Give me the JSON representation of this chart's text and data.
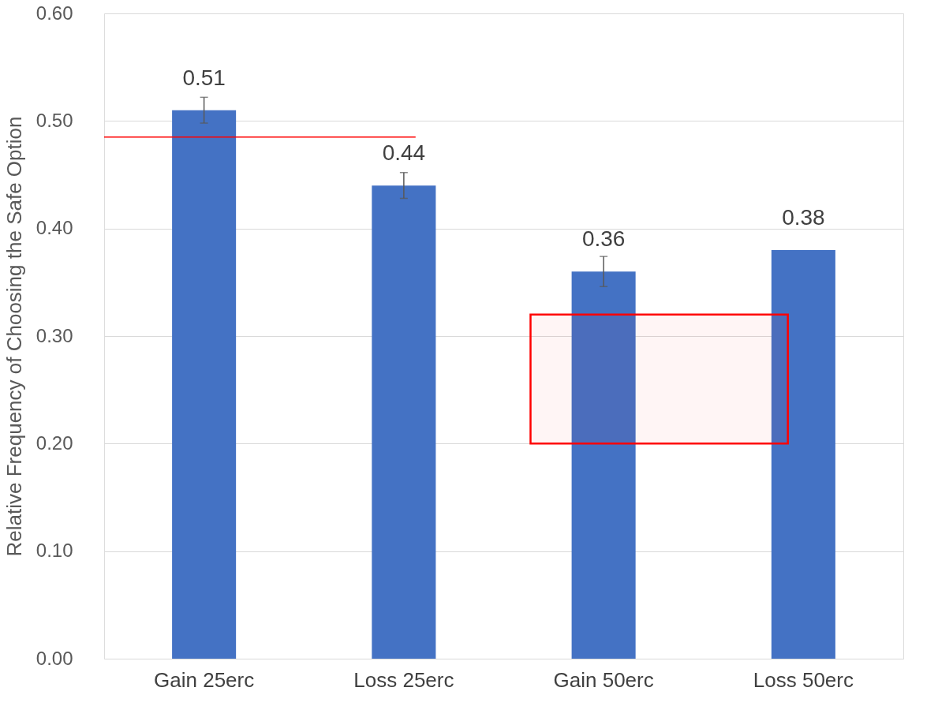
{
  "chart_data": {
    "type": "bar",
    "ylabel": "Relative Frequency of Choosing the Safe Option",
    "categories": [
      "Gain 25erc",
      "Loss 25erc",
      "Gain 50erc",
      "Loss 50erc"
    ],
    "values": [
      0.51,
      0.44,
      0.36,
      0.38
    ],
    "color": "#4472c4",
    "errors": [
      0.012,
      0.012,
      0.014,
      null
    ],
    "data_labels": true,
    "ylim": [
      0,
      0.6
    ],
    "yticks": [
      {
        "value": 0,
        "label": "0.00"
      },
      {
        "value": 0.1,
        "label": "0.10"
      },
      {
        "value": 0.2,
        "label": "0.20"
      },
      {
        "value": 0.3,
        "label": "0.30"
      },
      {
        "value": 0.4,
        "label": "0.40"
      },
      {
        "value": 0.5,
        "label": "0.50"
      },
      {
        "value": 0.6,
        "label": "0.60"
      }
    ],
    "grid": "y",
    "ref_lines": [
      {
        "axis": "y",
        "value": 0.485,
        "color": "#ff0000"
      }
    ],
    "bands": [
      {
        "axis": "y",
        "from": 0.2,
        "to": 0.32,
        "color": "#ff0000"
      }
    ]
  }
}
